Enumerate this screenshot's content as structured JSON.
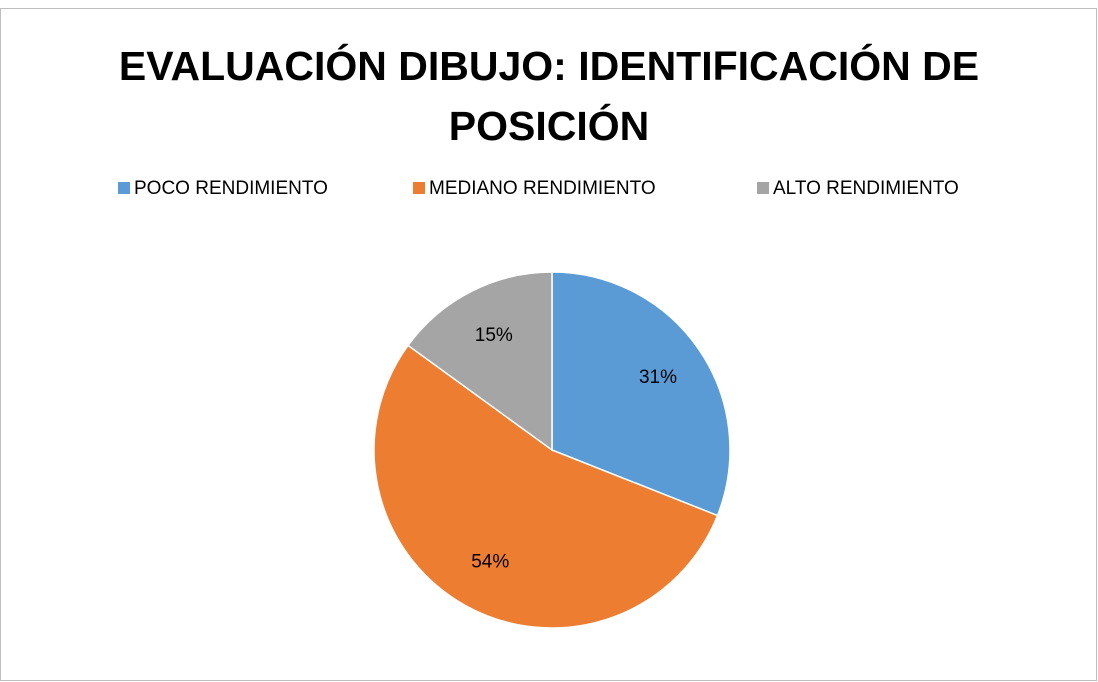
{
  "chart_data": {
    "type": "pie",
    "title": "EVALUACIÓN DIBUJO: IDENTIFICACIÓN DE POSICIÓN",
    "categories": [
      "POCO RENDIMIENTO",
      "MEDIANO RENDIMIENTO",
      "ALTO RENDIMIENTO"
    ],
    "values": [
      31,
      54,
      15
    ],
    "value_labels": [
      "31%",
      "54%",
      "15%"
    ],
    "colors": [
      "#5b9bd5",
      "#ed7d31",
      "#a5a5a5"
    ],
    "legend": "top"
  }
}
